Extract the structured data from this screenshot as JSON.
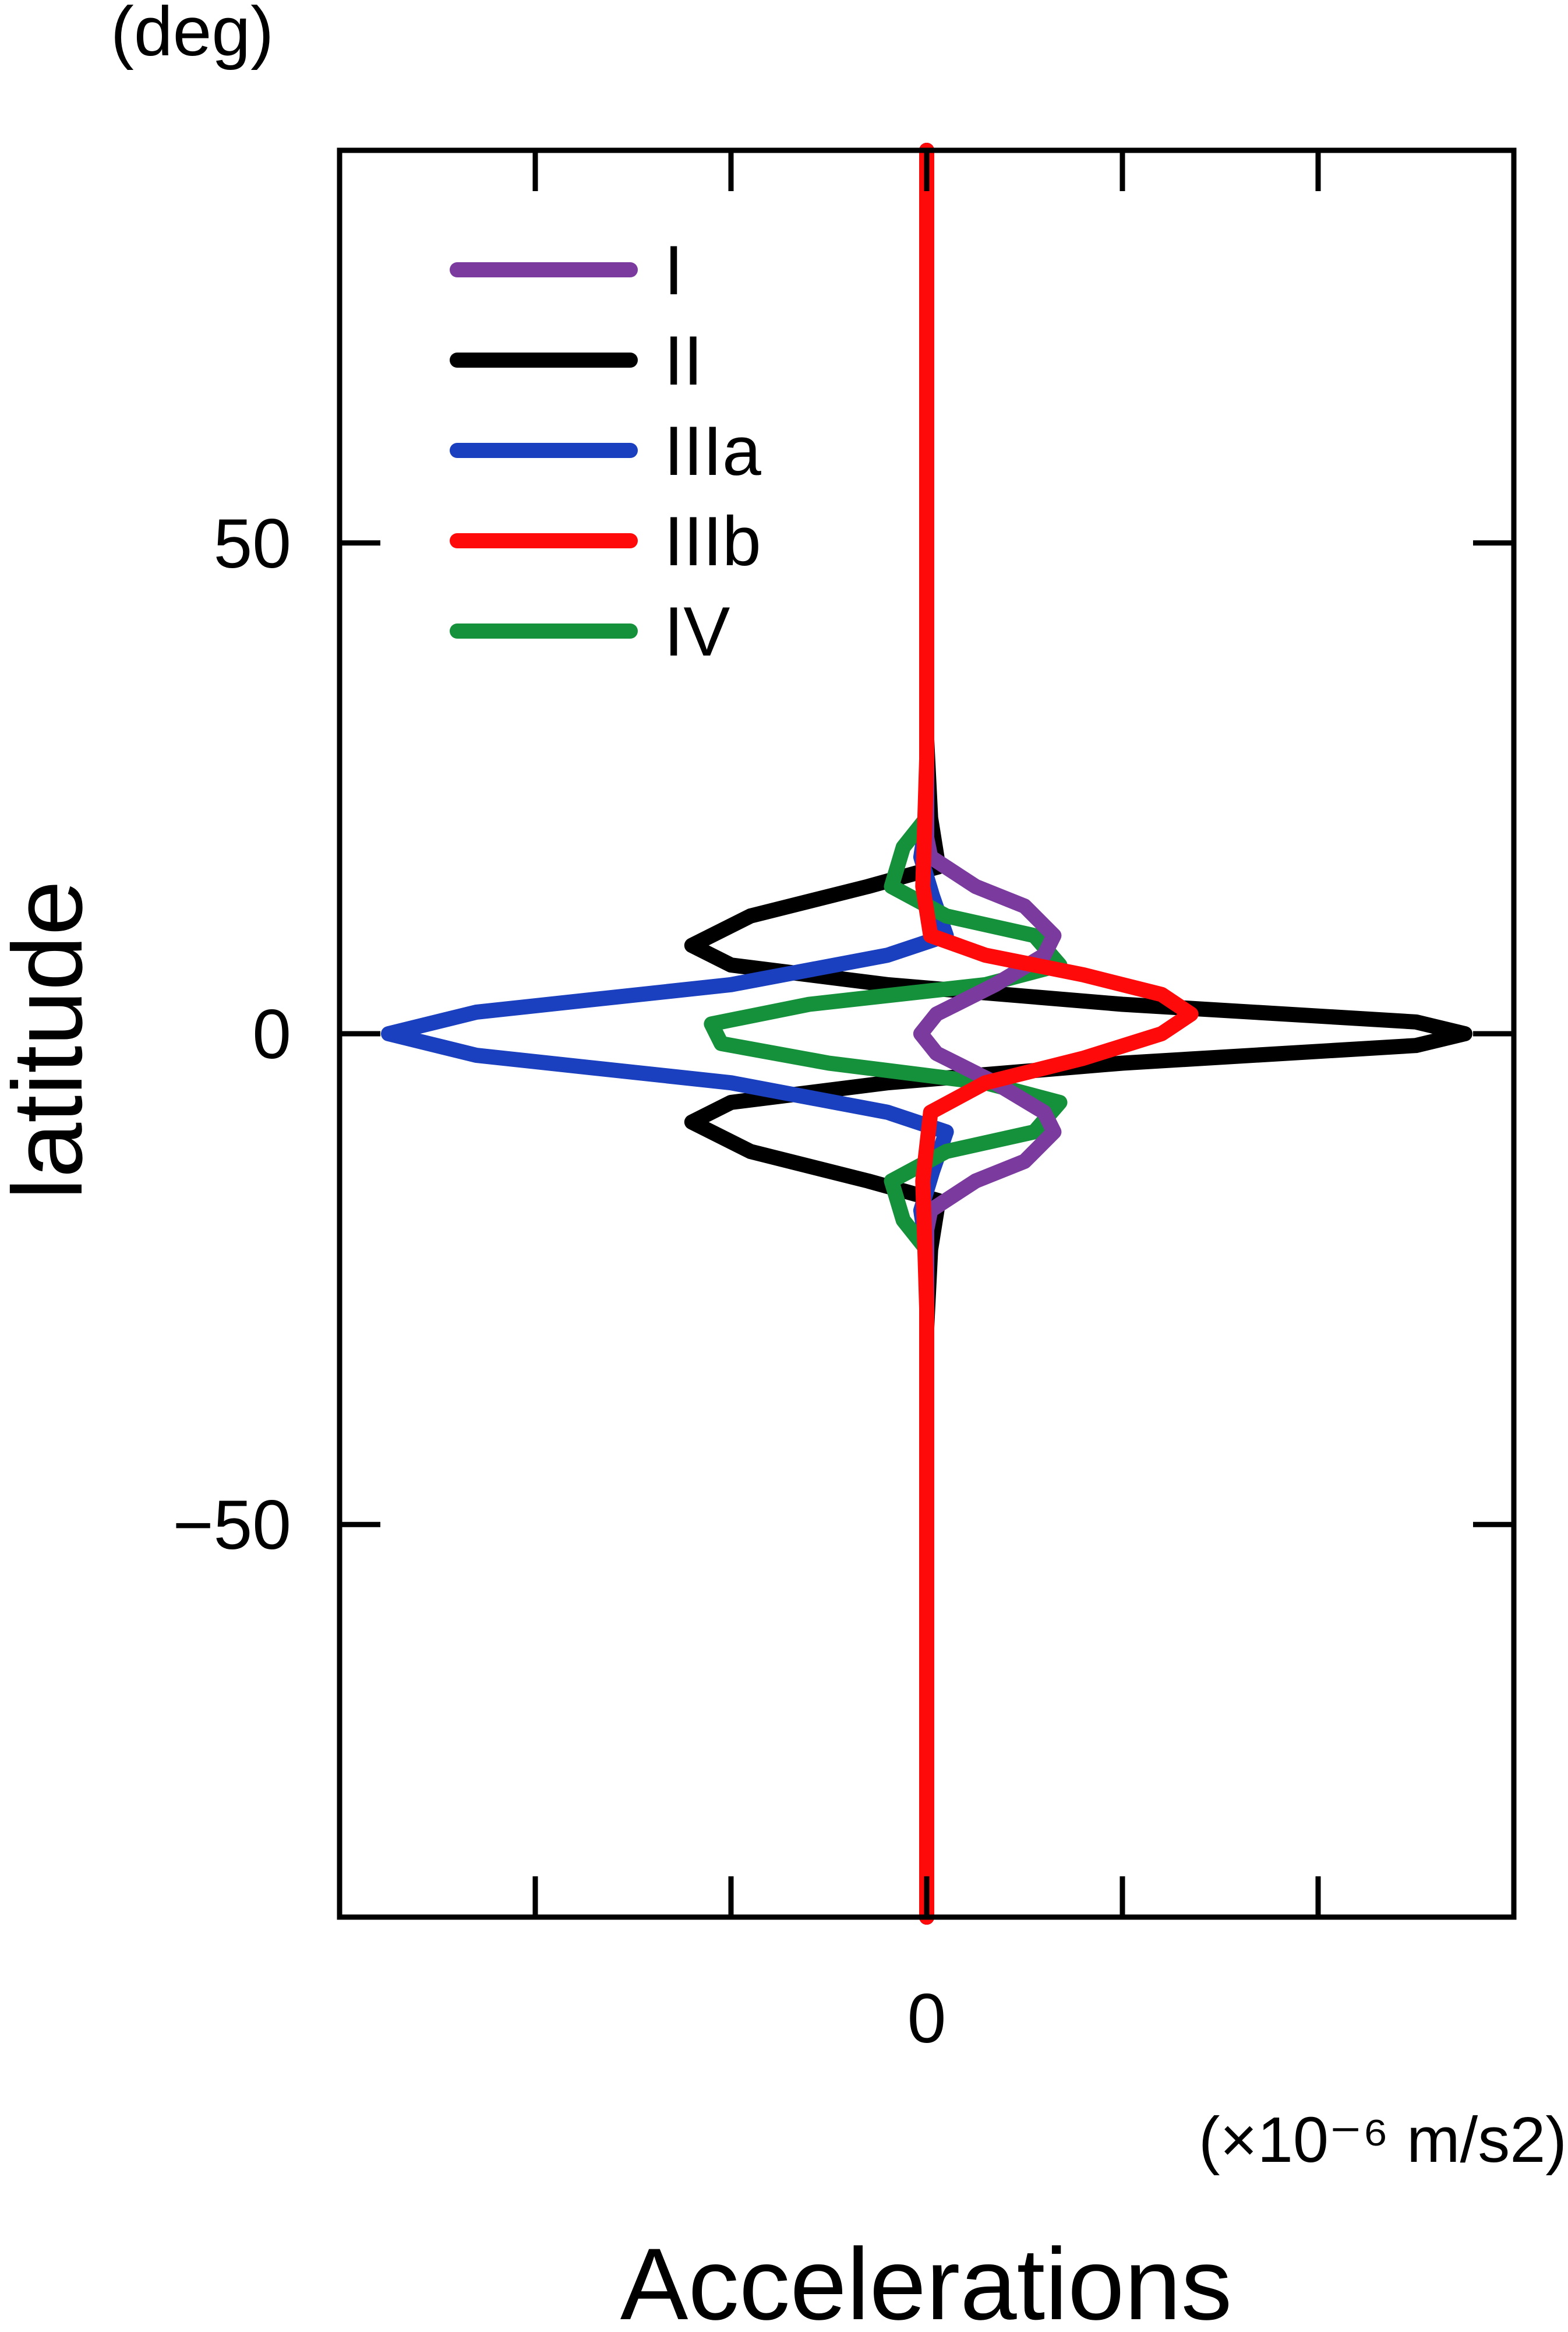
{
  "chart_data": {
    "type": "line",
    "title": "",
    "xlabel": "Accelerations",
    "x_unit": "(×10⁻⁶ m/s2)",
    "ylabel": "latitude",
    "y_unit": "(deg)",
    "ylim": [
      -90,
      90
    ],
    "xlim": [
      -3,
      3
    ],
    "x_ticks": [
      -2,
      -1,
      0,
      1,
      2
    ],
    "x_tick_labels": [
      "",
      "",
      "0",
      "",
      ""
    ],
    "y_ticks": [
      -50,
      0,
      50
    ],
    "y_tick_labels": [
      "−50",
      "0",
      "50"
    ],
    "grid": false,
    "legend_position": "top-left",
    "series": [
      {
        "name": "I",
        "color": "#7a3a9e",
        "points": [
          [
            0,
            90
          ],
          [
            0,
            20
          ],
          [
            0.02,
            18
          ],
          [
            0.25,
            15
          ],
          [
            0.5,
            13
          ],
          [
            0.65,
            10
          ],
          [
            0.6,
            8
          ],
          [
            0.35,
            5
          ],
          [
            0.05,
            2
          ],
          [
            -0.03,
            0
          ],
          [
            0.05,
            -2
          ],
          [
            0.35,
            -5
          ],
          [
            0.6,
            -8
          ],
          [
            0.65,
            -10
          ],
          [
            0.5,
            -13
          ],
          [
            0.25,
            -15
          ],
          [
            0.02,
            -18
          ],
          [
            0,
            -20
          ],
          [
            0,
            -90
          ]
        ]
      },
      {
        "name": "II",
        "color": "#000000",
        "points": [
          [
            0,
            90
          ],
          [
            0,
            30
          ],
          [
            0.02,
            22
          ],
          [
            0.06,
            17
          ],
          [
            -0.3,
            15
          ],
          [
            -0.9,
            12
          ],
          [
            -1.2,
            9
          ],
          [
            -1.0,
            7
          ],
          [
            -0.2,
            5
          ],
          [
            1.0,
            3
          ],
          [
            2.5,
            1.2
          ],
          [
            2.75,
            0
          ],
          [
            2.5,
            -1.2
          ],
          [
            1.0,
            -3
          ],
          [
            -0.2,
            -5
          ],
          [
            -1.0,
            -7
          ],
          [
            -1.2,
            -9
          ],
          [
            -0.9,
            -12
          ],
          [
            -0.3,
            -15
          ],
          [
            0.06,
            -17
          ],
          [
            0.02,
            -22
          ],
          [
            0,
            -30
          ],
          [
            0,
            -90
          ]
        ]
      },
      {
        "name": "IIIa",
        "color": "#1a3fbf",
        "points": [
          [
            0,
            90
          ],
          [
            0,
            22
          ],
          [
            -0.03,
            18
          ],
          [
            0.03,
            14
          ],
          [
            0.1,
            10
          ],
          [
            -0.2,
            8
          ],
          [
            -1.0,
            5
          ],
          [
            -2.3,
            2.2
          ],
          [
            -2.75,
            0
          ],
          [
            -2.3,
            -2.2
          ],
          [
            -1.0,
            -5
          ],
          [
            -0.2,
            -8
          ],
          [
            0.1,
            -10
          ],
          [
            0.03,
            -14
          ],
          [
            -0.03,
            -18
          ],
          [
            0,
            -22
          ],
          [
            0,
            -90
          ]
        ]
      },
      {
        "name": "IIIb",
        "color": "#ff0a0a",
        "points": [
          [
            0,
            90
          ],
          [
            0,
            28
          ],
          [
            -0.02,
            15
          ],
          [
            0.02,
            10
          ],
          [
            0.3,
            8
          ],
          [
            0.8,
            6
          ],
          [
            1.2,
            4
          ],
          [
            1.35,
            2
          ],
          [
            1.2,
            0
          ],
          [
            0.8,
            -2.5
          ],
          [
            0.3,
            -5
          ],
          [
            0.02,
            -8
          ],
          [
            -0.02,
            -15
          ],
          [
            0,
            -28
          ],
          [
            0,
            -90
          ]
        ]
      },
      {
        "name": "IV",
        "color": "#14913a",
        "points": [
          [
            0,
            90
          ],
          [
            0,
            22
          ],
          [
            -0.12,
            19
          ],
          [
            -0.18,
            15
          ],
          [
            0.1,
            12
          ],
          [
            0.55,
            10
          ],
          [
            0.68,
            7
          ],
          [
            0.3,
            5
          ],
          [
            -0.6,
            3
          ],
          [
            -1.1,
            1
          ],
          [
            -1.05,
            -1
          ],
          [
            -0.5,
            -3
          ],
          [
            0.3,
            -5
          ],
          [
            0.68,
            -7
          ],
          [
            0.55,
            -10
          ],
          [
            0.1,
            -12
          ],
          [
            -0.18,
            -15
          ],
          [
            -0.12,
            -19
          ],
          [
            0,
            -22
          ],
          [
            0,
            -90
          ]
        ]
      }
    ]
  }
}
